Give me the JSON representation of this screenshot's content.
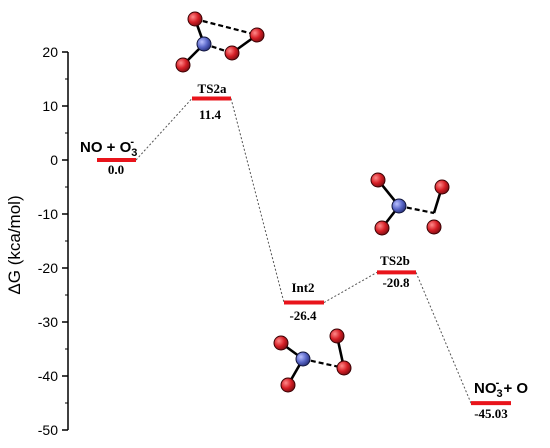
{
  "chart_data": {
    "type": "energy-level-diagram",
    "ylabel": "ΔG (kca/mol)",
    "ylim": [
      -50,
      20
    ],
    "yticks": [
      20,
      10,
      0,
      -10,
      -20,
      -30,
      -40,
      -50
    ],
    "level_color": "#e8141b",
    "connector_color": "#555555",
    "levels": [
      {
        "name": "NO + O3",
        "value": 0.0,
        "value_label": "0.0"
      },
      {
        "name": "TS2a",
        "value": 11.4,
        "value_label": "11.4"
      },
      {
        "name": "Int2",
        "value": -26.4,
        "value_label": "-26.4"
      },
      {
        "name": "TS2b",
        "value": -20.8,
        "value_label": "-20.8"
      },
      {
        "name": "NO3 + O",
        "value": -45.03,
        "value_label": "-45.03"
      }
    ],
    "species_text": {
      "no_o3": {
        "main": "NO + O",
        "sub": "3",
        "sup": "-"
      },
      "no3_o": {
        "main": "NO",
        "sub": "3",
        "sup": "-",
        "tail": " + O"
      }
    },
    "molecule_colors": {
      "oxygen": "#d61f26",
      "nitrogen": "#5a67c8"
    }
  }
}
